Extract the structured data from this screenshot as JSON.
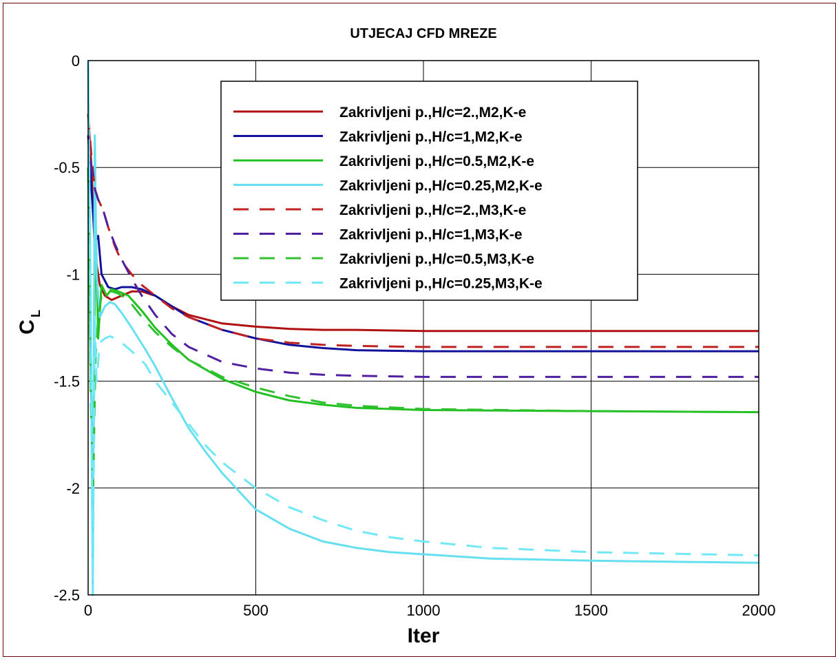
{
  "chart_data": {
    "type": "line",
    "title": "UTJECAJ CFD MREZE",
    "xlabel": "Iter",
    "ylabel": "C",
    "ylabel_sub": "L",
    "xlim": [
      0,
      2000
    ],
    "ylim": [
      -2.5,
      0
    ],
    "xticks": [
      "0",
      "500",
      "1000",
      "1500",
      "2000"
    ],
    "yticks": [
      "0",
      "-0.5",
      "-1",
      "-1.5",
      "-2",
      "-2.5"
    ],
    "grid": true,
    "legend_position": "top-right",
    "series": [
      {
        "name": "Zakrivljeni p.,H/c=2.,M2,K-e",
        "color": "#b01010",
        "dash": false,
        "x": [
          0,
          10,
          20,
          35,
          50,
          70,
          100,
          130,
          160,
          200,
          250,
          300,
          400,
          500,
          600,
          700,
          800,
          1000,
          1500,
          2000
        ],
        "y": [
          -0.25,
          -0.5,
          -0.9,
          -1.05,
          -1.1,
          -1.12,
          -1.1,
          -1.08,
          -1.08,
          -1.1,
          -1.15,
          -1.19,
          -1.23,
          -1.245,
          -1.255,
          -1.26,
          -1.26,
          -1.265,
          -1.265,
          -1.265
        ]
      },
      {
        "name": "Zakrivljeni p.,H/c=1,M2,K-e",
        "color": "#10109a",
        "dash": false,
        "x": [
          0,
          10,
          20,
          30,
          40,
          60,
          80,
          100,
          130,
          160,
          200,
          250,
          300,
          400,
          500,
          600,
          700,
          800,
          1000,
          1500,
          2000
        ],
        "y": [
          -0.35,
          -0.6,
          -0.85,
          -0.82,
          -1.0,
          -1.06,
          -1.07,
          -1.06,
          -1.06,
          -1.07,
          -1.1,
          -1.15,
          -1.2,
          -1.26,
          -1.3,
          -1.33,
          -1.345,
          -1.355,
          -1.36,
          -1.36,
          -1.36
        ]
      },
      {
        "name": "Zakrivljeni p.,H/c=0.5,M2,K-e",
        "color": "#20c020",
        "dash": false,
        "x": [
          0,
          8,
          15,
          22,
          30,
          40,
          55,
          70,
          90,
          120,
          160,
          200,
          250,
          300,
          400,
          500,
          600,
          700,
          800,
          1000,
          1500,
          2000
        ],
        "y": [
          -0.5,
          -1.5,
          -1.9,
          -0.72,
          -1.3,
          -1.05,
          -1.1,
          -1.07,
          -1.08,
          -1.1,
          -1.17,
          -1.25,
          -1.33,
          -1.4,
          -1.49,
          -1.55,
          -1.59,
          -1.61,
          -1.625,
          -1.635,
          -1.64,
          -1.645
        ]
      },
      {
        "name": "Zakrivljeni p.,H/c=0.25,M2,K-e",
        "color": "#66e0f0",
        "dash": false,
        "x": [
          0,
          8,
          14,
          20,
          25,
          35,
          50,
          65,
          80,
          100,
          130,
          170,
          200,
          250,
          300,
          350,
          400,
          500,
          600,
          700,
          800,
          900,
          1000,
          1200,
          1500,
          2000
        ],
        "y": [
          0,
          -1.2,
          -2.5,
          -0.35,
          -1.0,
          -1.2,
          -1.15,
          -1.13,
          -1.14,
          -1.18,
          -1.25,
          -1.35,
          -1.43,
          -1.58,
          -1.72,
          -1.83,
          -1.93,
          -2.1,
          -2.19,
          -2.25,
          -2.28,
          -2.3,
          -2.31,
          -2.33,
          -2.34,
          -2.35
        ]
      },
      {
        "name": "Zakrivljeni p.,H/c=2.,M3,K-e",
        "color": "#c02020",
        "dash": true,
        "x": [
          0,
          10,
          20,
          30,
          45,
          60,
          80,
          100,
          130,
          160,
          200,
          250,
          300,
          400,
          500,
          600,
          700,
          800,
          1000,
          1500,
          2000
        ],
        "y": [
          -0.25,
          -0.45,
          -0.6,
          -0.65,
          -0.7,
          -0.78,
          -0.87,
          -0.94,
          -1.0,
          -1.05,
          -1.1,
          -1.16,
          -1.2,
          -1.26,
          -1.3,
          -1.32,
          -1.33,
          -1.335,
          -1.34,
          -1.34,
          -1.34
        ]
      },
      {
        "name": "Zakrivljeni p.,H/c=1,M3,K-e",
        "color": "#5020a0",
        "dash": true,
        "x": [
          0,
          10,
          20,
          30,
          45,
          60,
          80,
          100,
          130,
          160,
          200,
          250,
          300,
          400,
          500,
          600,
          700,
          800,
          1000,
          1500,
          2000
        ],
        "y": [
          -0.35,
          -0.5,
          -0.6,
          -0.65,
          -0.7,
          -0.78,
          -0.86,
          -0.93,
          -1.02,
          -1.1,
          -1.19,
          -1.28,
          -1.34,
          -1.41,
          -1.44,
          -1.46,
          -1.47,
          -1.475,
          -1.48,
          -1.48,
          -1.48
        ]
      },
      {
        "name": "Zakrivljeni p.,H/c=0.5,M3,K-e",
        "color": "#30c030",
        "dash": true,
        "x": [
          0,
          8,
          15,
          22,
          30,
          40,
          55,
          70,
          90,
          120,
          160,
          200,
          250,
          300,
          400,
          500,
          600,
          700,
          800,
          1000,
          1500,
          2000
        ],
        "y": [
          -0.5,
          -1.6,
          -2.0,
          -1.4,
          -1.2,
          -1.1,
          -1.08,
          -1.08,
          -1.09,
          -1.12,
          -1.2,
          -1.27,
          -1.34,
          -1.4,
          -1.48,
          -1.53,
          -1.57,
          -1.6,
          -1.615,
          -1.63,
          -1.64,
          -1.645
        ]
      },
      {
        "name": "Zakrivljeni p.,H/c=0.25,M3,K-e",
        "color": "#70e8f5",
        "dash": true,
        "x": [
          0,
          8,
          14,
          20,
          25,
          35,
          50,
          65,
          80,
          100,
          130,
          170,
          200,
          250,
          300,
          350,
          400,
          500,
          600,
          700,
          800,
          900,
          1000,
          1200,
          1500,
          2000
        ],
        "y": [
          0,
          -1.3,
          -2.5,
          -1.2,
          -1.5,
          -1.32,
          -1.3,
          -1.29,
          -1.3,
          -1.32,
          -1.36,
          -1.42,
          -1.5,
          -1.6,
          -1.7,
          -1.8,
          -1.88,
          -2.0,
          -2.09,
          -2.15,
          -2.2,
          -2.23,
          -2.25,
          -2.28,
          -2.3,
          -2.315
        ]
      }
    ]
  }
}
